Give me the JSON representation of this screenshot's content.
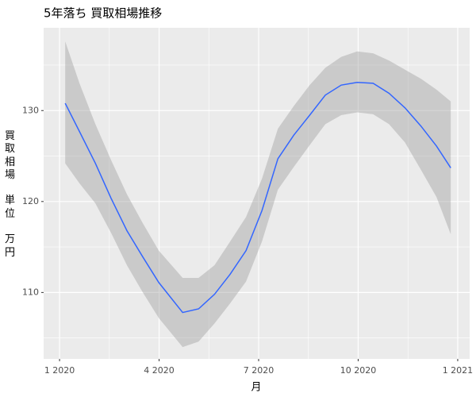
{
  "chart_data": {
    "type": "smooth",
    "title": "5年落ち 買取相場推移",
    "xlabel": "月",
    "ylabel": "買取相場\n\n単位\n\n万円",
    "x": [
      0.17,
      0.6,
      1.08,
      1.56,
      2.03,
      2.51,
      2.99,
      3.71,
      4.19,
      4.67,
      5.14,
      5.62,
      6.1,
      6.58,
      7.06,
      7.54,
      8.01,
      8.49,
      8.97,
      9.45,
      9.93,
      10.41,
      10.89,
      11.36,
      11.79
    ],
    "y": [
      130.8,
      127.7,
      124.2,
      120.3,
      116.8,
      113.9,
      111.1,
      107.8,
      108.2,
      109.8,
      112.0,
      114.6,
      119.0,
      124.7,
      127.3,
      129.5,
      131.7,
      132.8,
      133.1,
      133.0,
      131.9,
      130.3,
      128.3,
      126.1,
      123.7
    ],
    "ymin": [
      124.2,
      122.0,
      119.8,
      116.5,
      113.0,
      110.0,
      107.2,
      104.0,
      104.6,
      106.6,
      108.8,
      111.2,
      115.6,
      121.3,
      123.8,
      126.2,
      128.5,
      129.5,
      129.8,
      129.6,
      128.5,
      126.5,
      123.5,
      120.5,
      116.4
    ],
    "ymax": [
      137.6,
      133.0,
      128.5,
      124.5,
      120.8,
      117.6,
      114.6,
      111.6,
      111.6,
      113.0,
      115.6,
      118.3,
      122.5,
      128.0,
      130.5,
      132.8,
      134.7,
      135.9,
      136.5,
      136.3,
      135.5,
      134.5,
      133.5,
      132.3,
      131.0
    ],
    "color": "#3366ff",
    "band_color": "#999999",
    "xlim": [
      -0.48,
      12.36
    ],
    "xticks": [
      {
        "value": 0,
        "label": "1 2020"
      },
      {
        "value": 3,
        "label": "4 2020"
      },
      {
        "value": 6,
        "label": "7 2020"
      },
      {
        "value": 9,
        "label": "10 2020"
      },
      {
        "value": 12,
        "label": "1 2021"
      }
    ],
    "xminor": [
      1.5,
      4.5,
      7.5,
      10.5
    ],
    "ylim": [
      102.7,
      139.1
    ],
    "yticks": [
      110,
      120,
      130
    ],
    "yminor": [
      105,
      115,
      125,
      135
    ],
    "grid": true
  }
}
